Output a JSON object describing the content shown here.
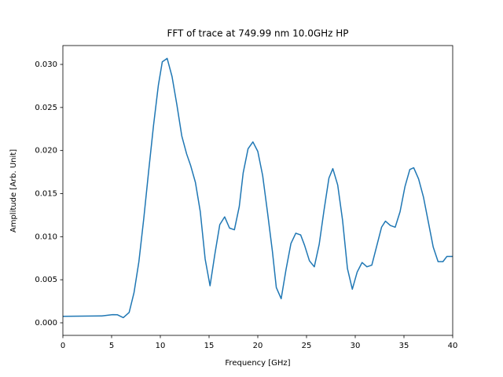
{
  "chart_data": {
    "type": "line",
    "title": "FFT of trace at 749.99 nm 10.0GHz HP",
    "x_label": "Frequency [GHz]",
    "y_label": "Amplitude [Arb. Unit]",
    "xlim": [
      0,
      40
    ],
    "ylim": [
      -0.00146,
      0.03219
    ],
    "xticks": [
      0,
      5,
      10,
      15,
      20,
      25,
      30,
      35,
      40
    ],
    "yticks": [
      {
        "value": 0,
        "label": "0.000"
      },
      {
        "value": 0.005,
        "label": "0.005"
      },
      {
        "value": 0.01,
        "label": "0.010"
      },
      {
        "value": 0.015,
        "label": "0.015"
      },
      {
        "value": 0.02,
        "label": "0.020"
      },
      {
        "value": 0.025,
        "label": "0.025"
      },
      {
        "value": 0.03,
        "label": "0.030"
      }
    ],
    "grid": false,
    "series": [
      {
        "color": "#1f77b4",
        "x": [
          0,
          4.0,
          5.1,
          5.6,
          6.2,
          6.8,
          7.3,
          7.8,
          8.3,
          8.8,
          9.3,
          9.8,
          10.2,
          10.7,
          11.2,
          11.7,
          12.2,
          12.7,
          13.1,
          13.6,
          14.1,
          14.6,
          15.1,
          15.6,
          16.1,
          16.6,
          17.1,
          17.6,
          18.1,
          18.5,
          19.0,
          19.5,
          20.0,
          20.5,
          21.0,
          21.5,
          21.9,
          22.4,
          22.9,
          23.4,
          23.9,
          24.4,
          24.8,
          25.3,
          25.8,
          26.3,
          26.8,
          27.3,
          27.7,
          28.2,
          28.7,
          29.2,
          29.7,
          30.2,
          30.7,
          31.2,
          31.7,
          32.2,
          32.7,
          33.1,
          33.6,
          34.1,
          34.6,
          35.1,
          35.6,
          36.0,
          36.5,
          37.0,
          37.5,
          38.0,
          38.5,
          39.0,
          39.4,
          40.0
        ],
        "values": [
          0.00075,
          0.0008,
          0.00095,
          0.00093,
          0.0006,
          0.0012,
          0.0035,
          0.0071,
          0.0121,
          0.0176,
          0.0229,
          0.0276,
          0.0303,
          0.0307,
          0.0286,
          0.0253,
          0.0217,
          0.0196,
          0.0183,
          0.0163,
          0.0129,
          0.0074,
          0.0043,
          0.008,
          0.0114,
          0.0123,
          0.011,
          0.0108,
          0.0135,
          0.0174,
          0.0202,
          0.021,
          0.0199,
          0.0171,
          0.0128,
          0.0083,
          0.0041,
          0.0028,
          0.0062,
          0.0092,
          0.0104,
          0.0102,
          0.009,
          0.0072,
          0.0065,
          0.0091,
          0.0131,
          0.0168,
          0.0179,
          0.016,
          0.0119,
          0.0063,
          0.0039,
          0.0059,
          0.007,
          0.0065,
          0.0067,
          0.0089,
          0.0111,
          0.0118,
          0.0113,
          0.0111,
          0.0129,
          0.0158,
          0.0178,
          0.018,
          0.0167,
          0.0146,
          0.0117,
          0.0088,
          0.0071,
          0.0071,
          0.0077,
          0.0077
        ]
      }
    ]
  }
}
